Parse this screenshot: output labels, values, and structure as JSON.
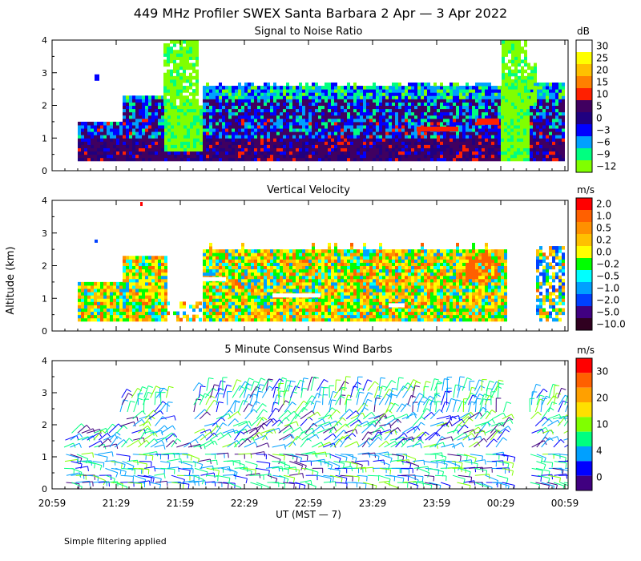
{
  "title": "449 MHz Profiler SWEX Santa Barbara  2 Apr —  3 Apr 2022",
  "footnote": "Simple filtering applied",
  "ylabel": "Altitude (km)",
  "xlabel": "UT  (MST — 7)",
  "x_ticks": [
    "20:59",
    "21:29",
    "21:59",
    "22:29",
    "22:59",
    "23:29",
    "23:59",
    "00:29",
    "00:59"
  ],
  "y_ticks": [
    "0",
    "1",
    "2",
    "3",
    "4"
  ],
  "chart_data": [
    {
      "type": "heatmap",
      "title": "Signal to Noise Ratio",
      "ylabel": "Altitude (km)",
      "ylim": [
        0,
        4
      ],
      "xlim": [
        "20:59",
        "00:59"
      ],
      "colorbar": {
        "unit": "dB",
        "labels": [
          "30",
          "25",
          "20",
          "15",
          "10",
          "5",
          "0",
          "−3",
          "−6",
          "−9",
          "−12"
        ],
        "colors": [
          "#ffffff",
          "#ffff00",
          "#ffc000",
          "#ff8000",
          "#ff2000",
          "#400060",
          "#200080",
          "#0000ff",
          "#00a0ff",
          "#00ff80",
          "#80ff00"
        ]
      }
    },
    {
      "type": "heatmap",
      "title": "Vertical Velocity",
      "ylabel": "Altitude (km)",
      "ylim": [
        0,
        4
      ],
      "xlim": [
        "20:59",
        "00:59"
      ],
      "colorbar": {
        "unit": "m/s",
        "labels": [
          "2.0",
          "1.0",
          "0.5",
          "0.2",
          "0.0",
          "−0.2",
          "−0.5",
          "−1.0",
          "−2.0",
          "−5.0",
          "−10.0"
        ],
        "colors": [
          "#ff0000",
          "#ff6000",
          "#ff9000",
          "#ffc000",
          "#ffff00",
          "#00ff00",
          "#00ffff",
          "#00a0ff",
          "#0040ff",
          "#400080",
          "#300020"
        ]
      }
    },
    {
      "type": "scatter",
      "title": "5 Minute Consensus Wind Barbs",
      "ylabel": "Altitude (km)",
      "ylim": [
        0,
        4
      ],
      "xlim": [
        "20:59",
        "00:59"
      ],
      "colorbar": {
        "unit": "m/s",
        "labels": [
          "30",
          "20",
          "10",
          "4",
          "0"
        ],
        "colors": [
          "#ff0000",
          "#ff6000",
          "#ffa000",
          "#ffe000",
          "#80ff00",
          "#00ff80",
          "#00a0ff",
          "#0000ff",
          "#400080"
        ]
      }
    }
  ]
}
